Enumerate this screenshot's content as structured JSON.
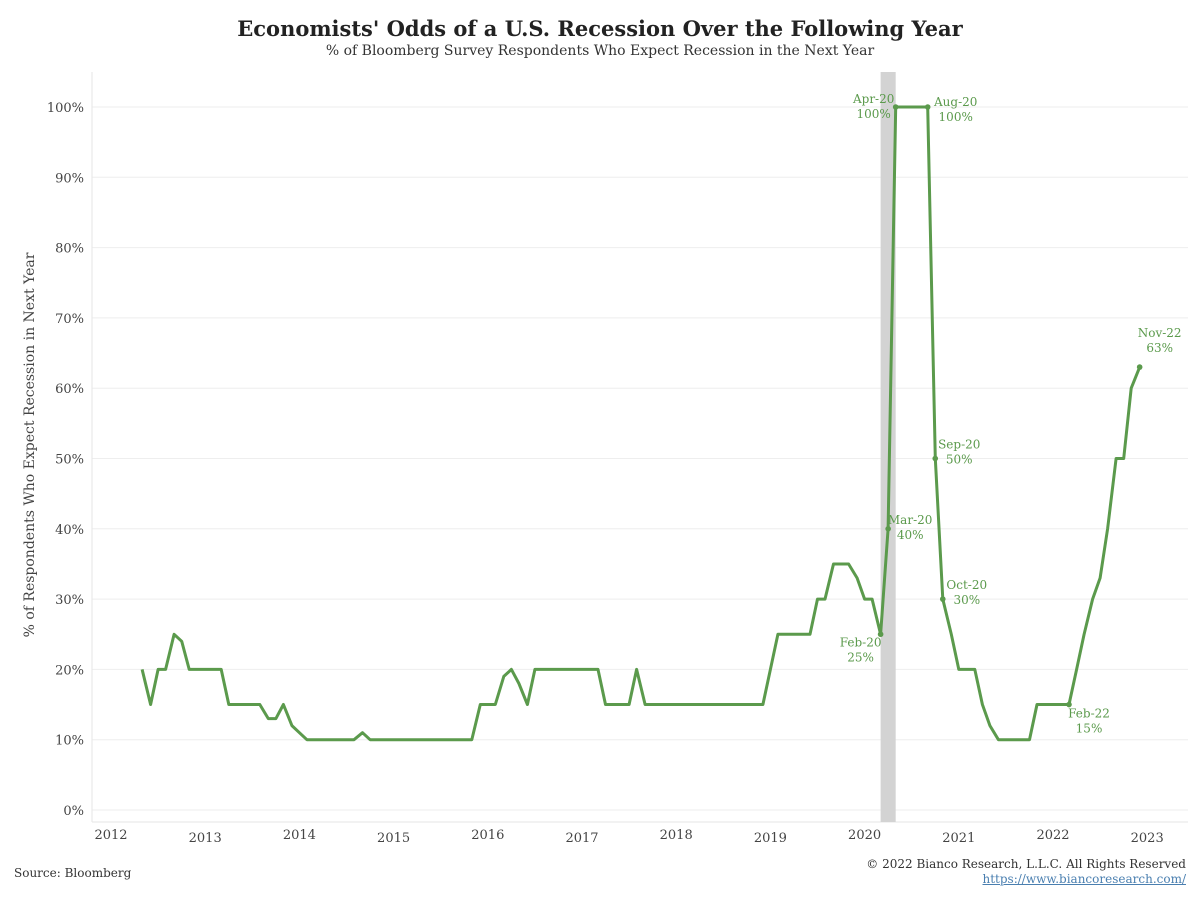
{
  "header": {
    "title": "Economists' Odds of a U.S. Recession Over the Following Year",
    "subtitle": "% of Bloomberg Survey Respondents Who Expect Recession in the Next Year"
  },
  "footer": {
    "source": "Source: Bloomberg",
    "copyright": "© 2022 Bianco Research, L.L.C. All Rights Reserved",
    "url": "https://www.biancoresearch.com/"
  },
  "colors": {
    "line": "#5b9a4c",
    "recession_band": "#d3d3d3",
    "grid": "#eeeeee"
  },
  "chart_data": {
    "type": "line",
    "ylabel": "% of Respondents Who Expect Recession in Next Year",
    "xlabel": "",
    "ylim": [
      0,
      105
    ],
    "xlim": [
      2011.8,
      2023.4
    ],
    "y_ticks": [
      "0%",
      "10%",
      "20%",
      "30%",
      "40%",
      "50%",
      "60%",
      "70%",
      "80%",
      "90%",
      "100%"
    ],
    "y_tick_values": [
      0,
      10,
      20,
      30,
      40,
      50,
      60,
      70,
      80,
      90,
      100
    ],
    "x_ticks": [
      "2012",
      "2013",
      "2014",
      "2015",
      "2016",
      "2017",
      "2018",
      "2019",
      "2020",
      "2021",
      "2022",
      "2023"
    ],
    "x_tick_values": [
      2012,
      2013,
      2014,
      2015,
      2016,
      2017,
      2018,
      2019,
      2020,
      2021,
      2022,
      2023
    ],
    "recession_band": [
      2020.17,
      2020.33
    ],
    "grid": true,
    "series": [
      {
        "x": [
          2012.33,
          2012.42,
          2012.5,
          2012.58,
          2012.67,
          2012.75,
          2012.83,
          2012.92,
          2013.0,
          2013.08,
          2013.17,
          2013.25,
          2013.33,
          2013.42,
          2013.5,
          2013.58,
          2013.67,
          2013.75,
          2013.83,
          2013.92,
          2014.0,
          2014.08,
          2014.17,
          2014.25,
          2014.33,
          2014.42,
          2014.5,
          2014.58,
          2014.67,
          2014.75,
          2014.83,
          2014.92,
          2015.0,
          2015.5,
          2015.83,
          2015.92,
          2016.0,
          2016.08,
          2016.17,
          2016.25,
          2016.33,
          2016.42,
          2016.5,
          2016.58,
          2016.67,
          2016.75,
          2016.83,
          2016.92,
          2017.0,
          2017.08,
          2017.17,
          2017.25,
          2017.33,
          2017.42,
          2017.5,
          2017.58,
          2017.67,
          2017.75,
          2017.83,
          2017.92,
          2018.0,
          2018.5,
          2018.92,
          2019.0,
          2019.08,
          2019.17,
          2019.25,
          2019.33,
          2019.42,
          2019.5,
          2019.58,
          2019.67,
          2019.75,
          2019.83,
          2019.92,
          2020.0,
          2020.08,
          2020.17,
          2020.25,
          2020.33,
          2020.42,
          2020.5,
          2020.58,
          2020.67,
          2020.75,
          2020.83,
          2020.92,
          2021.0,
          2021.08,
          2021.17,
          2021.25,
          2021.33,
          2021.42,
          2021.5,
          2021.58,
          2021.67,
          2021.75,
          2021.83,
          2021.92,
          2022.0,
          2022.08,
          2022.17,
          2022.25,
          2022.33,
          2022.42,
          2022.5,
          2022.58,
          2022.67,
          2022.75,
          2022.83,
          2022.92
        ],
        "y": [
          20,
          15,
          20,
          20,
          25,
          24,
          20,
          20,
          20,
          20,
          20,
          15,
          15,
          15,
          15,
          15,
          13,
          13,
          15,
          12,
          11,
          10,
          10,
          10,
          10,
          10,
          10,
          10,
          11,
          10,
          10,
          10,
          10,
          10,
          10,
          15,
          15,
          15,
          19,
          20,
          18,
          15,
          20,
          20,
          20,
          20,
          20,
          20,
          20,
          20,
          20,
          15,
          15,
          15,
          15,
          20,
          15,
          15,
          15,
          15,
          15,
          15,
          15,
          20,
          25,
          25,
          25,
          25,
          25,
          30,
          30,
          35,
          35,
          35,
          33,
          30,
          30,
          25,
          40,
          100,
          100,
          100,
          100,
          100,
          50,
          30,
          25,
          20,
          20,
          20,
          15,
          12,
          10,
          10,
          10,
          10,
          10,
          15,
          15,
          15,
          15,
          15,
          20,
          25,
          30,
          33,
          40,
          50,
          50,
          60,
          63
        ]
      }
    ],
    "annotations": [
      {
        "label": "Feb-20",
        "value": "25%",
        "x": 2020.17,
        "y": 25,
        "pos": "left-below"
      },
      {
        "label": "Mar-20",
        "value": "40%",
        "x": 2020.25,
        "y": 40,
        "pos": "right"
      },
      {
        "label": "Apr-20",
        "value": "100%",
        "x": 2020.33,
        "y": 100,
        "pos": "left"
      },
      {
        "label": "Aug-20",
        "value": "100%",
        "x": 2020.67,
        "y": 100,
        "pos": "right"
      },
      {
        "label": "Sep-20",
        "value": "50%",
        "x": 2020.75,
        "y": 50,
        "pos": "right-above"
      },
      {
        "label": "Oct-20",
        "value": "30%",
        "x": 2020.83,
        "y": 30,
        "pos": "right-above"
      },
      {
        "label": "Feb-22",
        "value": "15%",
        "x": 2022.17,
        "y": 15,
        "pos": "right-below"
      },
      {
        "label": "Nov-22",
        "value": "63%",
        "x": 2022.92,
        "y": 63,
        "pos": "above"
      }
    ]
  }
}
